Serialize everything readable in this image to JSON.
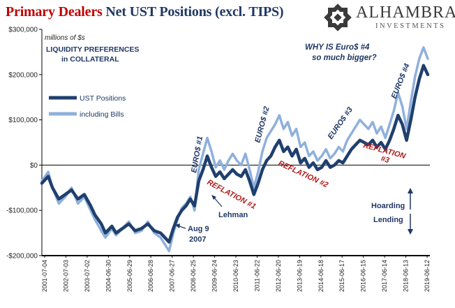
{
  "title": {
    "part_red": "Primary Dealers",
    "part_blue": " Net UST Positions (excl. TIPS)"
  },
  "logo": {
    "name": "ALHAMBRA",
    "sub": "INVESTMENTS",
    "icon": "alhambra-star-icon"
  },
  "colors": {
    "dark_series": "#1f3f6e",
    "light_series": "#8fb0dc",
    "red_text": "#b01c1c",
    "navy_text": "#1f3864"
  },
  "chart_data": {
    "type": "line",
    "unit_label": "millions of $s",
    "ylim": [
      -200000,
      300000
    ],
    "y_ticks": [
      {
        "value": 300000,
        "label": "$300,000"
      },
      {
        "value": 200000,
        "label": "$200,000"
      },
      {
        "value": 100000,
        "label": "$100,000"
      },
      {
        "value": 0,
        "label": "$0"
      },
      {
        "value": -100000,
        "label": "-$100,000"
      },
      {
        "value": -200000,
        "label": "-$200,000"
      }
    ],
    "x_ticks": [
      "2001-07-04",
      "2002-07-03",
      "2003-07-02",
      "2004-06-30",
      "2005-06-29",
      "2006-06-28",
      "2007-06-27",
      "2008-06-25",
      "2009-06-24",
      "2010-06-23",
      "2011-06-22",
      "2012-06-20",
      "2013-06-19",
      "2014-06-18",
      "2015-06-17",
      "2016-06-15",
      "2017-06-14",
      "2018-06-13",
      "2019-06-12"
    ],
    "legend": {
      "placement": "left",
      "heading_line1": "LIQUIDITY PREFERENCES",
      "heading_line2": "in COLLATERAL"
    },
    "series": [
      {
        "name": "UST Positions",
        "color": "#1f3f6e",
        "points": [
          [
            2001.5,
            -40000
          ],
          [
            2001.8,
            -25000
          ],
          [
            2002.0,
            -50000
          ],
          [
            2002.3,
            -75000
          ],
          [
            2002.6,
            -65000
          ],
          [
            2002.9,
            -55000
          ],
          [
            2003.2,
            -75000
          ],
          [
            2003.5,
            -65000
          ],
          [
            2003.8,
            -90000
          ],
          [
            2004.0,
            -110000
          ],
          [
            2004.3,
            -130000
          ],
          [
            2004.5,
            -150000
          ],
          [
            2004.8,
            -135000
          ],
          [
            2005.0,
            -150000
          ],
          [
            2005.3,
            -140000
          ],
          [
            2005.6,
            -130000
          ],
          [
            2005.9,
            -145000
          ],
          [
            2006.2,
            -140000
          ],
          [
            2006.5,
            -130000
          ],
          [
            2006.8,
            -145000
          ],
          [
            2007.1,
            -150000
          ],
          [
            2007.3,
            -160000
          ],
          [
            2007.5,
            -170000
          ],
          [
            2007.7,
            -140000
          ],
          [
            2007.9,
            -115000
          ],
          [
            2008.1,
            -100000
          ],
          [
            2008.3,
            -90000
          ],
          [
            2008.5,
            -75000
          ],
          [
            2008.7,
            -90000
          ],
          [
            2008.9,
            -35000
          ],
          [
            2009.1,
            -10000
          ],
          [
            2009.3,
            20000
          ],
          [
            2009.5,
            -5000
          ],
          [
            2009.7,
            -25000
          ],
          [
            2009.9,
            -15000
          ],
          [
            2010.1,
            -30000
          ],
          [
            2010.3,
            -20000
          ],
          [
            2010.5,
            -10000
          ],
          [
            2010.7,
            -20000
          ],
          [
            2010.9,
            -25000
          ],
          [
            2011.1,
            -10000
          ],
          [
            2011.3,
            -35000
          ],
          [
            2011.5,
            -65000
          ],
          [
            2011.7,
            -40000
          ],
          [
            2011.9,
            -10000
          ],
          [
            2012.1,
            10000
          ],
          [
            2012.3,
            20000
          ],
          [
            2012.5,
            40000
          ],
          [
            2012.7,
            55000
          ],
          [
            2012.9,
            30000
          ],
          [
            2013.1,
            40000
          ],
          [
            2013.3,
            20000
          ],
          [
            2013.5,
            35000
          ],
          [
            2013.7,
            5000
          ],
          [
            2013.9,
            15000
          ],
          [
            2014.1,
            -5000
          ],
          [
            2014.3,
            5000
          ],
          [
            2014.5,
            -10000
          ],
          [
            2014.7,
            -5000
          ],
          [
            2014.9,
            10000
          ],
          [
            2015.1,
            -5000
          ],
          [
            2015.3,
            0
          ],
          [
            2015.5,
            10000
          ],
          [
            2015.7,
            5000
          ],
          [
            2015.9,
            20000
          ],
          [
            2016.1,
            35000
          ],
          [
            2016.3,
            45000
          ],
          [
            2016.5,
            55000
          ],
          [
            2016.7,
            50000
          ],
          [
            2016.9,
            45000
          ],
          [
            2017.1,
            55000
          ],
          [
            2017.3,
            40000
          ],
          [
            2017.5,
            50000
          ],
          [
            2017.7,
            35000
          ],
          [
            2017.9,
            55000
          ],
          [
            2018.1,
            80000
          ],
          [
            2018.3,
            110000
          ],
          [
            2018.5,
            90000
          ],
          [
            2018.7,
            55000
          ],
          [
            2018.9,
            100000
          ],
          [
            2019.1,
            150000
          ],
          [
            2019.3,
            190000
          ],
          [
            2019.5,
            220000
          ],
          [
            2019.7,
            200000
          ]
        ]
      },
      {
        "name": "including Bills",
        "color": "#8fb0dc",
        "points": [
          [
            2001.5,
            -35000
          ],
          [
            2001.8,
            -15000
          ],
          [
            2002.0,
            -50000
          ],
          [
            2002.3,
            -85000
          ],
          [
            2002.6,
            -70000
          ],
          [
            2002.9,
            -50000
          ],
          [
            2003.2,
            -85000
          ],
          [
            2003.5,
            -70000
          ],
          [
            2003.8,
            -100000
          ],
          [
            2004.0,
            -120000
          ],
          [
            2004.3,
            -145000
          ],
          [
            2004.5,
            -160000
          ],
          [
            2004.8,
            -140000
          ],
          [
            2005.0,
            -155000
          ],
          [
            2005.3,
            -140000
          ],
          [
            2005.6,
            -125000
          ],
          [
            2005.9,
            -150000
          ],
          [
            2006.2,
            -145000
          ],
          [
            2006.5,
            -125000
          ],
          [
            2006.8,
            -150000
          ],
          [
            2007.1,
            -160000
          ],
          [
            2007.3,
            -175000
          ],
          [
            2007.5,
            -190000
          ],
          [
            2007.7,
            -150000
          ],
          [
            2007.9,
            -120000
          ],
          [
            2008.1,
            -95000
          ],
          [
            2008.3,
            -85000
          ],
          [
            2008.5,
            -70000
          ],
          [
            2008.7,
            -100000
          ],
          [
            2008.9,
            -10000
          ],
          [
            2009.1,
            25000
          ],
          [
            2009.3,
            60000
          ],
          [
            2009.5,
            30000
          ],
          [
            2009.7,
            -5000
          ],
          [
            2009.9,
            10000
          ],
          [
            2010.1,
            -10000
          ],
          [
            2010.3,
            10000
          ],
          [
            2010.5,
            25000
          ],
          [
            2010.7,
            10000
          ],
          [
            2010.9,
            0
          ],
          [
            2011.1,
            25000
          ],
          [
            2011.3,
            -10000
          ],
          [
            2011.5,
            -50000
          ],
          [
            2011.7,
            -15000
          ],
          [
            2011.9,
            30000
          ],
          [
            2012.1,
            60000
          ],
          [
            2012.3,
            75000
          ],
          [
            2012.5,
            90000
          ],
          [
            2012.7,
            110000
          ],
          [
            2012.9,
            80000
          ],
          [
            2013.1,
            95000
          ],
          [
            2013.3,
            65000
          ],
          [
            2013.5,
            80000
          ],
          [
            2013.7,
            40000
          ],
          [
            2013.9,
            50000
          ],
          [
            2014.1,
            20000
          ],
          [
            2014.3,
            30000
          ],
          [
            2014.5,
            10000
          ],
          [
            2014.7,
            20000
          ],
          [
            2014.9,
            35000
          ],
          [
            2015.1,
            15000
          ],
          [
            2015.3,
            25000
          ],
          [
            2015.5,
            40000
          ],
          [
            2015.7,
            30000
          ],
          [
            2015.9,
            55000
          ],
          [
            2016.1,
            70000
          ],
          [
            2016.3,
            85000
          ],
          [
            2016.5,
            100000
          ],
          [
            2016.7,
            90000
          ],
          [
            2016.9,
            80000
          ],
          [
            2017.1,
            95000
          ],
          [
            2017.3,
            70000
          ],
          [
            2017.5,
            85000
          ],
          [
            2017.7,
            60000
          ],
          [
            2017.9,
            90000
          ],
          [
            2018.1,
            120000
          ],
          [
            2018.3,
            160000
          ],
          [
            2018.5,
            130000
          ],
          [
            2018.7,
            80000
          ],
          [
            2018.9,
            140000
          ],
          [
            2019.1,
            195000
          ],
          [
            2019.3,
            235000
          ],
          [
            2019.5,
            260000
          ],
          [
            2019.7,
            235000
          ]
        ]
      }
    ],
    "annotations": [
      {
        "id": "why-note",
        "text_line1": "WHY IS Euro$ #4",
        "text_line2": "so much bigger?"
      },
      {
        "id": "euro1",
        "text": "EURO$ #1"
      },
      {
        "id": "euro2",
        "text": "EURO$ #2"
      },
      {
        "id": "euro3",
        "text": "EURO$ #3"
      },
      {
        "id": "euro4",
        "text": "EURO$ #4"
      },
      {
        "id": "reflation1",
        "text": "REFLATION #1"
      },
      {
        "id": "reflation2",
        "text": "REFLATION #2"
      },
      {
        "id": "reflation3",
        "text_line1": "REFLATION",
        "text_line2": "#3"
      },
      {
        "id": "lehman",
        "text": "Lehman"
      },
      {
        "id": "aug9",
        "text_line1": "Aug 9",
        "text_line2": "2007"
      },
      {
        "id": "hoarding",
        "text": "Hoarding"
      },
      {
        "id": "lending",
        "text": "Lending"
      }
    ]
  }
}
